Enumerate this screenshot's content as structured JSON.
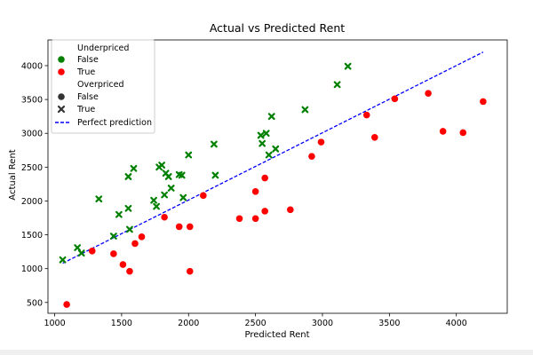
{
  "chart_data": {
    "type": "scatter",
    "title": "Actual vs Predicted Rent",
    "xlabel": "Predicted Rent",
    "ylabel": "Actual Rent",
    "xlim": [
      950,
      4380
    ],
    "ylim": [
      340,
      4380
    ],
    "xticks": [
      1000,
      1500,
      2000,
      2500,
      3000,
      3500,
      4000
    ],
    "yticks": [
      500,
      1000,
      1500,
      2000,
      2500,
      3000,
      3500,
      4000
    ],
    "grid": false,
    "legend_placement": "top-left",
    "legend": {
      "hue_title": "Underpriced",
      "hue_entries": [
        {
          "label": "False",
          "color": "#008000"
        },
        {
          "label": "True",
          "color": "#ff0000"
        }
      ],
      "style_title": "Overpriced",
      "style_entries": [
        {
          "label": "False",
          "marker": "circle"
        },
        {
          "label": "True",
          "marker": "x"
        }
      ],
      "line_label": "Perfect prediction"
    },
    "perfect_line": {
      "x": [
        1060,
        4200
      ],
      "y": [
        1080,
        4200
      ],
      "color": "#0000ff",
      "style": "dashed"
    },
    "series": [
      {
        "name": "Overpriced",
        "underpriced": "False",
        "overpriced": "True",
        "color": "#008000",
        "marker": "x",
        "points": [
          [
            1060,
            1130
          ],
          [
            1170,
            1310
          ],
          [
            1200,
            1230
          ],
          [
            1330,
            2030
          ],
          [
            1440,
            1480
          ],
          [
            1480,
            1800
          ],
          [
            1550,
            1890
          ],
          [
            1550,
            2360
          ],
          [
            1560,
            1580
          ],
          [
            1590,
            2480
          ],
          [
            1740,
            2010
          ],
          [
            1760,
            1920
          ],
          [
            1780,
            2500
          ],
          [
            1800,
            2530
          ],
          [
            1820,
            2090
          ],
          [
            1830,
            2410
          ],
          [
            1850,
            2360
          ],
          [
            1870,
            2190
          ],
          [
            1930,
            2390
          ],
          [
            1950,
            2380
          ],
          [
            1960,
            2050
          ],
          [
            2000,
            2680
          ],
          [
            2190,
            2840
          ],
          [
            2200,
            2380
          ],
          [
            2540,
            2970
          ],
          [
            2550,
            2850
          ],
          [
            2580,
            3000
          ],
          [
            2600,
            2680
          ],
          [
            2620,
            3250
          ],
          [
            2650,
            2770
          ],
          [
            2870,
            3350
          ],
          [
            3110,
            3720
          ],
          [
            3190,
            3990
          ]
        ]
      },
      {
        "name": "Underpriced",
        "underpriced": "True",
        "overpriced": "False",
        "color": "#ff0000",
        "marker": "circle",
        "points": [
          [
            1090,
            470
          ],
          [
            1280,
            1260
          ],
          [
            1440,
            1220
          ],
          [
            1510,
            1060
          ],
          [
            1560,
            960
          ],
          [
            1600,
            1370
          ],
          [
            1650,
            1470
          ],
          [
            1820,
            1760
          ],
          [
            1930,
            1620
          ],
          [
            2010,
            1620
          ],
          [
            2010,
            960
          ],
          [
            2110,
            2080
          ],
          [
            2380,
            1740
          ],
          [
            2500,
            2140
          ],
          [
            2500,
            1740
          ],
          [
            2570,
            2340
          ],
          [
            2570,
            1850
          ],
          [
            2760,
            1870
          ],
          [
            2920,
            2660
          ],
          [
            2990,
            2870
          ],
          [
            3330,
            3270
          ],
          [
            3390,
            2940
          ],
          [
            3540,
            3510
          ],
          [
            3790,
            3590
          ],
          [
            3900,
            3030
          ],
          [
            4050,
            3010
          ],
          [
            4200,
            3470
          ]
        ]
      }
    ]
  }
}
